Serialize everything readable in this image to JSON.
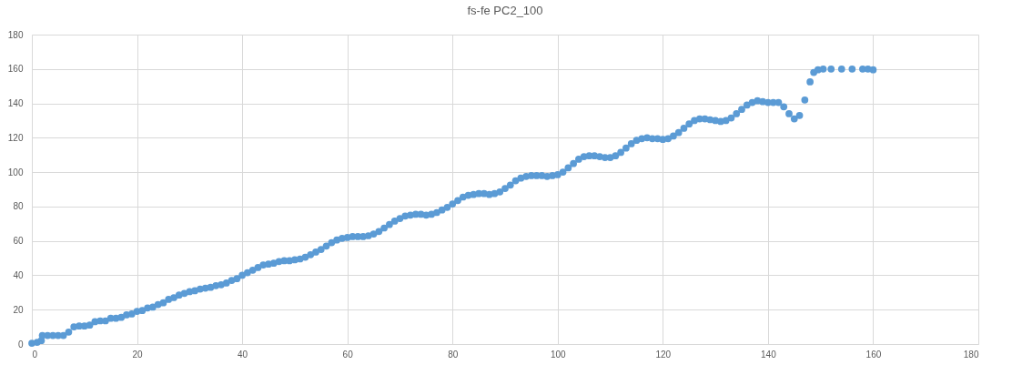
{
  "chart_data": {
    "type": "scatter",
    "title": "fs-fe PC2_100",
    "marker": "circle",
    "grid": true,
    "xlim": [
      0,
      180
    ],
    "xticks": [
      0,
      20,
      40,
      60,
      80,
      100,
      120,
      140,
      160,
      180
    ],
    "ylim": [
      0,
      180
    ],
    "yticks": [
      0,
      20,
      40,
      60,
      80,
      100,
      120,
      140,
      160,
      180
    ],
    "series": [
      {
        "color": "#5b9bd5",
        "x": [
          0,
          1,
          1.8,
          2,
          3,
          4,
          5,
          6,
          7,
          8,
          9,
          10,
          11,
          12,
          13,
          14,
          15,
          16,
          17,
          18,
          19,
          20,
          21,
          22,
          23,
          24,
          25,
          26,
          27,
          28,
          29,
          30,
          31,
          32,
          33,
          34,
          35,
          36,
          37,
          38,
          39,
          40,
          41,
          42,
          43,
          44,
          45,
          46,
          47,
          48,
          49,
          50,
          51,
          52,
          53,
          54,
          55,
          56,
          57,
          58,
          59,
          60,
          61,
          62,
          63,
          64,
          65,
          66,
          67,
          68,
          69,
          70,
          71,
          72,
          73,
          74,
          75,
          76,
          77,
          78,
          79,
          80,
          81,
          82,
          83,
          84,
          85,
          86,
          87,
          88,
          89,
          90,
          91,
          92,
          93,
          94,
          95,
          96,
          97,
          98,
          99,
          100,
          101,
          102,
          103,
          104,
          105,
          106,
          107,
          108,
          109,
          110,
          111,
          112,
          113,
          114,
          115,
          116,
          117,
          118,
          119,
          120,
          121,
          122,
          123,
          124,
          125,
          126,
          127,
          128,
          129,
          130,
          131,
          132,
          133,
          134,
          135,
          136,
          137,
          138,
          139,
          140,
          141,
          142,
          143,
          144,
          145,
          146,
          147,
          148,
          148.7,
          149.5,
          150.5,
          152,
          154,
          156,
          158,
          159,
          160
        ],
        "values": [
          0.5,
          1,
          2,
          5,
          5,
          5,
          5,
          5,
          7,
          10,
          10.5,
          10.5,
          11,
          13,
          13.5,
          13.5,
          15,
          15,
          15.5,
          17,
          17.5,
          19,
          19.5,
          21,
          21.5,
          23,
          24,
          26,
          27,
          28.5,
          29.5,
          30.5,
          31,
          32,
          32.5,
          33,
          34,
          34.5,
          35.5,
          37,
          38,
          40,
          41.5,
          43,
          44.5,
          46,
          46.5,
          47,
          48,
          48.5,
          48.5,
          49,
          49.5,
          50.5,
          52,
          53.5,
          55,
          57,
          59,
          60.5,
          61.5,
          62,
          62.5,
          62.5,
          62.5,
          63,
          64,
          65.5,
          67.5,
          69.5,
          71.5,
          73,
          74.5,
          75,
          75.5,
          75.5,
          75,
          75.5,
          76.5,
          78,
          79.5,
          81.5,
          83.5,
          85.5,
          86.5,
          87,
          87.5,
          87.5,
          87,
          87.5,
          88.5,
          90.5,
          92.5,
          95,
          96.5,
          97.5,
          98,
          98,
          98,
          97.5,
          98,
          98.5,
          100,
          102.5,
          105,
          107.5,
          109,
          109.5,
          109.5,
          109,
          108.5,
          108.5,
          109.5,
          111.5,
          114,
          116.5,
          118.5,
          119.5,
          120,
          119.5,
          119.5,
          119,
          119.5,
          121,
          123,
          125.5,
          128,
          130,
          131,
          131,
          130.5,
          130,
          129.5,
          130,
          131.5,
          134,
          136.5,
          139,
          140.5,
          141.5,
          141,
          140.5,
          140.5,
          140.5,
          138,
          134,
          131,
          133,
          142,
          152.5,
          158,
          159.5,
          160,
          160,
          160,
          160,
          160,
          160,
          159.5
        ]
      }
    ]
  }
}
